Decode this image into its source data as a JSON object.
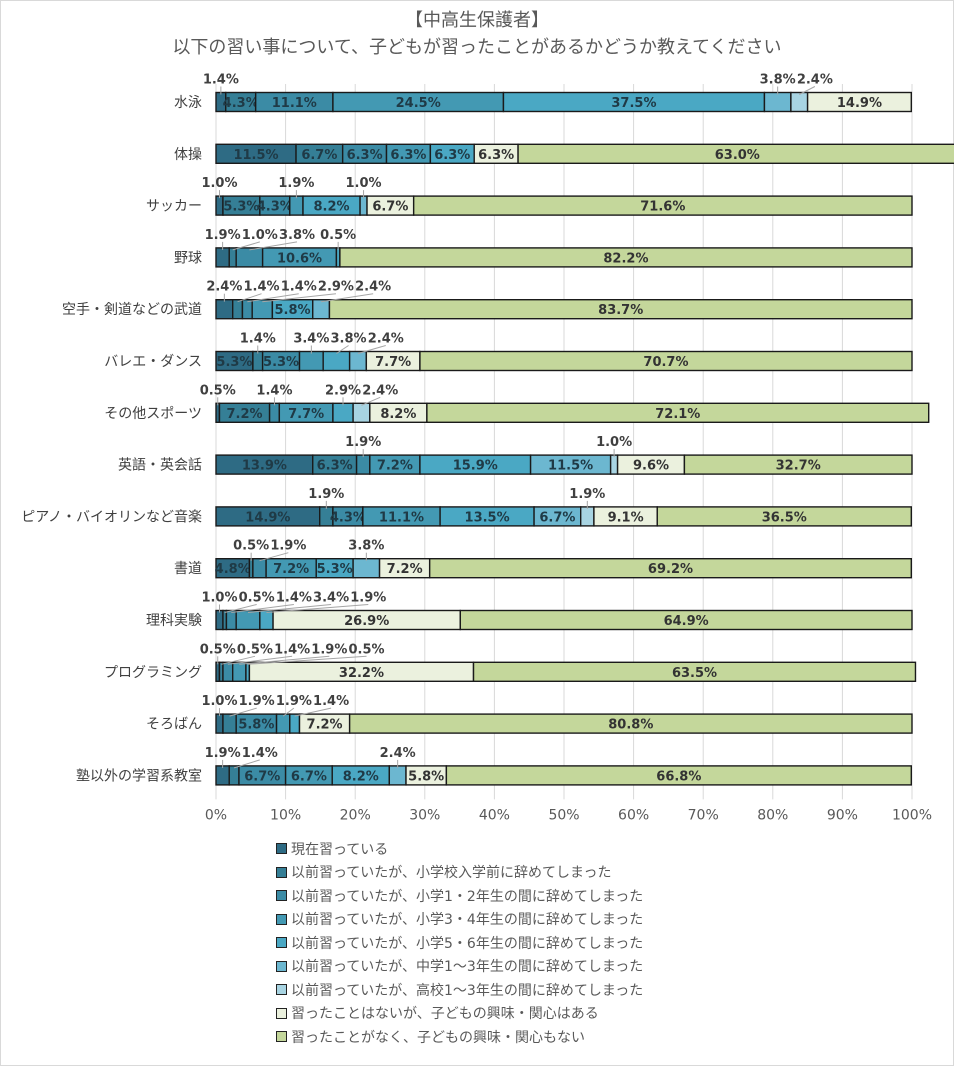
{
  "chart_data": {
    "type": "bar",
    "orientation": "horizontal",
    "stacked": "100%",
    "title": "【中高生保護者】",
    "subtitle": "以下の習い事について、子どもが習ったことがあるかどうか教えてください",
    "categories": [
      "水泳",
      "体操",
      "サッカー",
      "野球",
      "空手・剣道などの武道",
      "バレエ・ダンス",
      "その他スポーツ",
      "英語・英会話",
      "ピアノ・バイオリンなど音楽",
      "書道",
      "理科実験",
      "プログラミング",
      "そろばん",
      "塾以外の学習系教室"
    ],
    "xlim": [
      0,
      100
    ],
    "x_ticks": [
      "0%",
      "10%",
      "20%",
      "30%",
      "40%",
      "50%",
      "60%",
      "70%",
      "80%",
      "90%",
      "100%"
    ],
    "gridlines": true,
    "legend_position": "bottom",
    "series": [
      {
        "name": "現在習っている",
        "color": "#2e6b84",
        "values": [
          1.4,
          11.5,
          1.0,
          1.9,
          2.4,
          5.3,
          0.5,
          13.9,
          14.9,
          4.8,
          1.0,
          0.5,
          1.0,
          1.9
        ]
      },
      {
        "name": "以前習っていたが、小学校入学前に辞めてしまった",
        "color": "#357f96",
        "values": [
          4.3,
          6.7,
          5.3,
          1.0,
          1.4,
          1.4,
          7.2,
          6.3,
          1.9,
          0.5,
          0.5,
          0.5,
          1.9,
          1.4
        ]
      },
      {
        "name": "以前習っていたが、小学1・2年生の間に辞めてしまった",
        "color": "#3b8ba5",
        "values": [
          11.1,
          6.3,
          4.3,
          3.8,
          1.4,
          5.3,
          1.4,
          1.9,
          4.3,
          1.9,
          1.4,
          1.4,
          5.8,
          6.7
        ]
      },
      {
        "name": "以前習っていたが、小学3・4年生の間に辞めてしまった",
        "color": "#4399b3",
        "values": [
          24.5,
          6.3,
          1.9,
          10.6,
          2.9,
          3.4,
          7.7,
          7.2,
          11.1,
          7.2,
          3.4,
          1.9,
          1.9,
          6.7
        ]
      },
      {
        "name": "以前習っていたが、小学5・6年生の間に辞めてしまった",
        "color": "#4aa8c4",
        "values": [
          37.5,
          6.3,
          8.2,
          0.5,
          5.8,
          3.8,
          2.9,
          15.9,
          13.5,
          5.3,
          1.9,
          0.5,
          1.4,
          8.2
        ]
      },
      {
        "name": "以前習っていたが、中学1～3年生の間に辞めてしまった",
        "color": "#6cb7d0",
        "values": [
          3.8,
          0.0,
          1.0,
          0.0,
          2.4,
          2.4,
          0.0,
          11.5,
          6.7,
          3.8,
          0.0,
          0.0,
          0.0,
          2.4
        ]
      },
      {
        "name": "以前習っていたが、高校1～3年生の間に辞めてしまった",
        "color": "#a8d4e2",
        "values": [
          2.4,
          0.0,
          0.0,
          0.0,
          0.0,
          0.0,
          2.4,
          1.0,
          1.9,
          0.0,
          0.0,
          0.0,
          0.0,
          0.0
        ]
      },
      {
        "name": "習ったことはないが、子どもの興味・関心はある",
        "color": "#ebf1de",
        "values": [
          14.9,
          6.3,
          6.7,
          0.0,
          0.0,
          7.7,
          8.2,
          9.6,
          9.1,
          7.2,
          26.9,
          32.2,
          7.2,
          5.8
        ]
      },
      {
        "name": "習ったことがなく、子どもの興味・関心もない",
        "color": "#c4d79b",
        "values": [
          0.0,
          63.0,
          71.6,
          82.2,
          83.7,
          70.7,
          72.1,
          32.7,
          36.5,
          69.2,
          64.9,
          63.5,
          80.8,
          66.8
        ]
      }
    ]
  }
}
